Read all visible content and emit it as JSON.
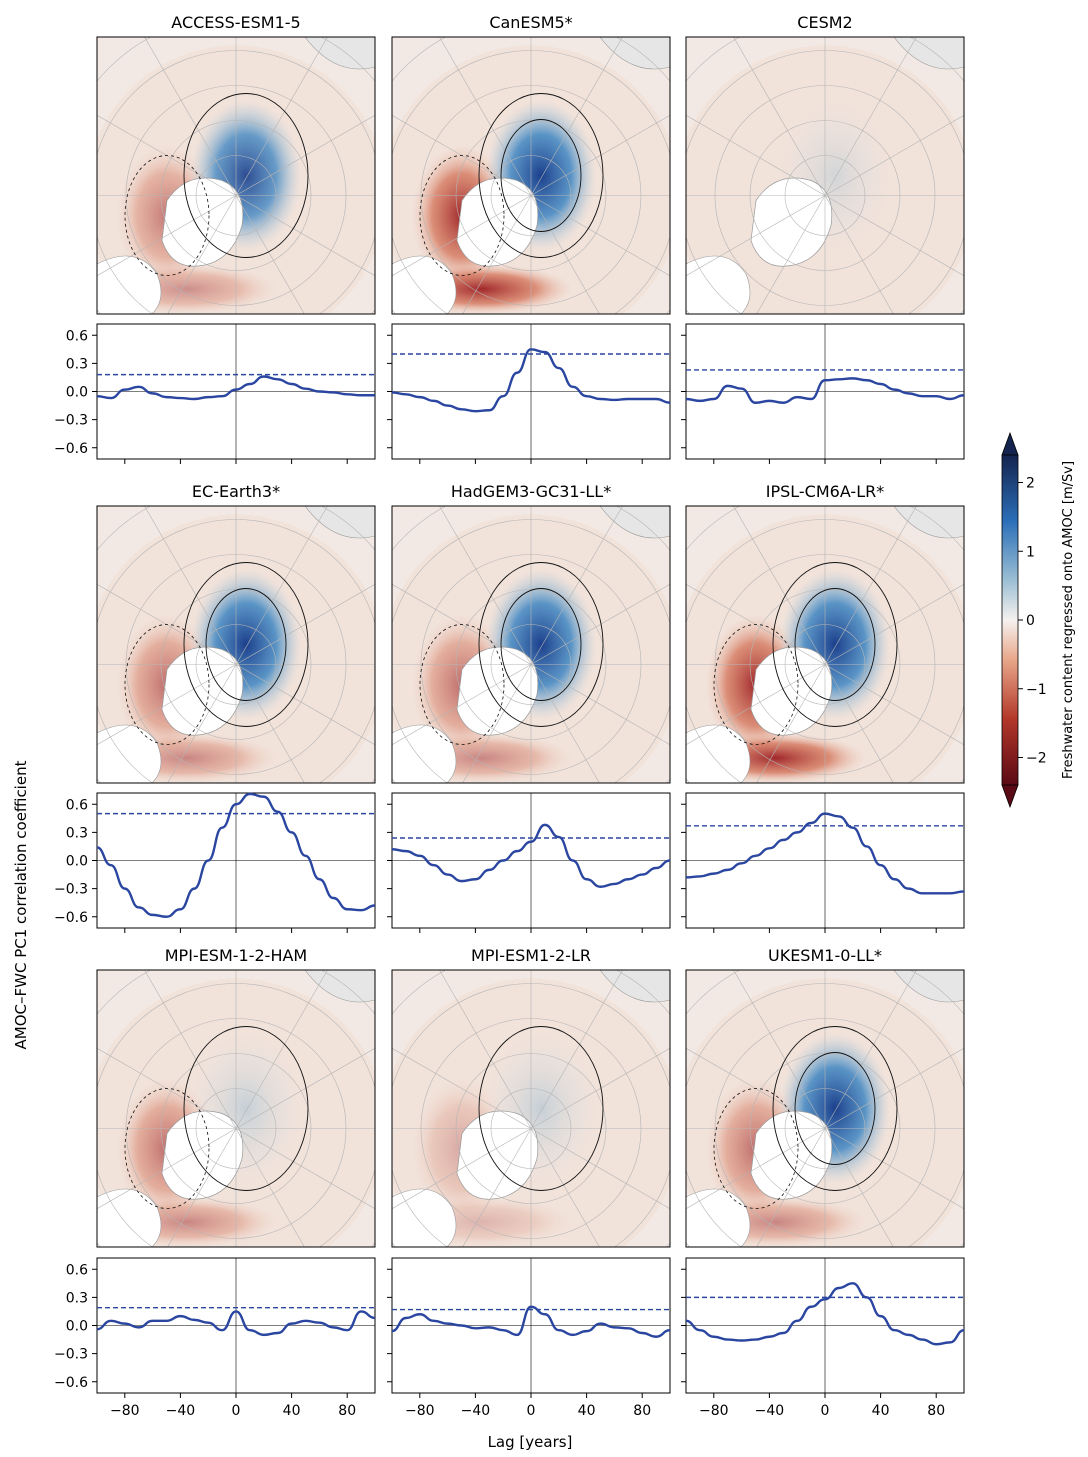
{
  "figure": {
    "ylabel": "AMOC–FWC PC1 correlation coefficient",
    "xlabel": "Lag [years]",
    "colorbar": {
      "label": "Freshwater content regressed onto AMOC [m/Sv]",
      "ticks": [
        "2",
        "1",
        "0",
        "−1",
        "−2"
      ],
      "tick_values": [
        2,
        1,
        0,
        -1,
        -2
      ],
      "range": [
        -2.4,
        2.4
      ],
      "colors": {
        "neg": "#5a0a14",
        "mid": "#f6f1ef",
        "pos": "#15244f"
      }
    }
  },
  "panels": [
    {
      "name": "ACCESS-ESM1-5",
      "hotspots": [
        {
          "pos": 1
        },
        {
          "neg": 0.9
        }
      ]
    },
    {
      "name": "CanESM5*",
      "hotspots": [
        {
          "pos": 2.3
        },
        {
          "neg": 2
        }
      ]
    },
    {
      "name": "CESM2",
      "hotspots": [
        {
          "pos": 0.2
        }
      ]
    },
    {
      "name": "EC-Earth3*",
      "hotspots": [
        {
          "pos": 1.5
        },
        {
          "neg": 1
        }
      ]
    },
    {
      "name": "HadGEM3-GC31-LL*",
      "hotspots": [
        {
          "pos": 1.5
        },
        {
          "neg": 1
        }
      ]
    },
    {
      "name": "IPSL-CM6A-LR*",
      "hotspots": [
        {
          "pos": 2
        },
        {
          "neg": 2
        }
      ]
    },
    {
      "name": "MPI-ESM-1-2-HAM",
      "hotspots": [
        {
          "pos": 0.4
        },
        {
          "neg": 1
        }
      ]
    },
    {
      "name": "MPI-ESM1-2-LR",
      "hotspots": [
        {
          "pos": 0.4
        },
        {
          "neg": 0.5
        }
      ]
    },
    {
      "name": "UKESM1-0-LL*",
      "hotspots": [
        {
          "pos": 2
        },
        {
          "neg": 1
        }
      ]
    }
  ],
  "chart_data": {
    "type": "line",
    "x_range": [
      -100,
      100
    ],
    "ylim": [
      -0.72,
      0.72
    ],
    "x_ticks": [
      "−80",
      "−40",
      "0",
      "40",
      "80"
    ],
    "x_tick_values": [
      -80,
      -40,
      0,
      40,
      80
    ],
    "y_ticks": [
      "0.6",
      "0.3",
      "0.0",
      "−0.3",
      "−0.6"
    ],
    "y_tick_values": [
      0.6,
      0.3,
      0.0,
      -0.3,
      -0.6
    ],
    "line_color": "#2a46a0",
    "series": [
      {
        "name": "ACCESS-ESM1-5",
        "threshold": 0.18,
        "x": [
          -100,
          -90,
          -80,
          -70,
          -60,
          -50,
          -40,
          -30,
          -20,
          -10,
          0,
          10,
          20,
          30,
          40,
          50,
          60,
          70,
          80,
          90,
          100
        ],
        "y": [
          -0.05,
          -0.07,
          0.02,
          0.05,
          -0.02,
          -0.06,
          -0.07,
          -0.08,
          -0.06,
          -0.05,
          0.02,
          0.08,
          0.16,
          0.13,
          0.08,
          0.03,
          0.0,
          -0.01,
          -0.03,
          -0.04,
          -0.04
        ]
      },
      {
        "name": "CanESM5*",
        "threshold": 0.4,
        "x": [
          -100,
          -90,
          -80,
          -70,
          -60,
          -50,
          -40,
          -30,
          -20,
          -10,
          0,
          10,
          20,
          30,
          40,
          50,
          60,
          70,
          80,
          90,
          100
        ],
        "y": [
          -0.01,
          -0.03,
          -0.06,
          -0.1,
          -0.15,
          -0.19,
          -0.21,
          -0.2,
          -0.05,
          0.2,
          0.45,
          0.42,
          0.25,
          0.05,
          -0.05,
          -0.08,
          -0.09,
          -0.08,
          -0.08,
          -0.08,
          -0.12
        ]
      },
      {
        "name": "CESM2",
        "threshold": 0.23,
        "x": [
          -100,
          -90,
          -80,
          -70,
          -60,
          -50,
          -40,
          -30,
          -20,
          -10,
          0,
          10,
          20,
          30,
          40,
          50,
          60,
          70,
          80,
          90,
          100
        ],
        "y": [
          -0.08,
          -0.1,
          -0.08,
          0.06,
          0.03,
          -0.12,
          -0.1,
          -0.12,
          -0.06,
          -0.08,
          0.12,
          0.13,
          0.14,
          0.12,
          0.08,
          0.02,
          -0.02,
          -0.05,
          -0.05,
          -0.08,
          -0.04
        ]
      },
      {
        "name": "EC-Earth3*",
        "threshold": 0.5,
        "x": [
          -100,
          -90,
          -80,
          -70,
          -60,
          -50,
          -40,
          -30,
          -20,
          -10,
          0,
          10,
          20,
          30,
          40,
          50,
          60,
          70,
          80,
          90,
          100
        ],
        "y": [
          0.14,
          -0.05,
          -0.3,
          -0.5,
          -0.58,
          -0.6,
          -0.52,
          -0.3,
          0.0,
          0.35,
          0.6,
          0.71,
          0.68,
          0.52,
          0.3,
          0.05,
          -0.2,
          -0.4,
          -0.52,
          -0.53,
          -0.48
        ]
      },
      {
        "name": "HadGEM3-GC31-LL*",
        "threshold": 0.24,
        "x": [
          -100,
          -90,
          -80,
          -70,
          -60,
          -50,
          -40,
          -30,
          -20,
          -10,
          0,
          10,
          20,
          30,
          40,
          50,
          60,
          70,
          80,
          90,
          100
        ],
        "y": [
          0.12,
          0.1,
          0.05,
          -0.05,
          -0.15,
          -0.22,
          -0.2,
          -0.1,
          0.0,
          0.1,
          0.2,
          0.38,
          0.25,
          0.0,
          -0.2,
          -0.28,
          -0.25,
          -0.2,
          -0.15,
          -0.08,
          0.0
        ]
      },
      {
        "name": "IPSL-CM6A-LR*",
        "threshold": 0.37,
        "x": [
          -100,
          -90,
          -80,
          -70,
          -60,
          -50,
          -40,
          -30,
          -20,
          -10,
          0,
          10,
          20,
          30,
          40,
          50,
          60,
          70,
          80,
          90,
          100
        ],
        "y": [
          -0.18,
          -0.17,
          -0.14,
          -0.1,
          -0.03,
          0.05,
          0.13,
          0.22,
          0.3,
          0.4,
          0.5,
          0.47,
          0.35,
          0.15,
          -0.05,
          -0.2,
          -0.3,
          -0.35,
          -0.35,
          -0.35,
          -0.33
        ]
      },
      {
        "name": "MPI-ESM-1-2-HAM",
        "threshold": 0.19,
        "x": [
          -100,
          -90,
          -80,
          -70,
          -60,
          -50,
          -40,
          -30,
          -20,
          -10,
          0,
          10,
          20,
          30,
          40,
          50,
          60,
          70,
          80,
          90,
          100
        ],
        "y": [
          -0.04,
          0.05,
          0.02,
          -0.02,
          0.05,
          0.05,
          0.1,
          0.06,
          0.03,
          -0.05,
          0.15,
          -0.05,
          -0.1,
          -0.08,
          0.02,
          0.05,
          0.03,
          -0.02,
          -0.05,
          0.15,
          0.08
        ]
      },
      {
        "name": "MPI-ESM1-2-LR",
        "threshold": 0.17,
        "x": [
          -100,
          -90,
          -80,
          -70,
          -60,
          -50,
          -40,
          -30,
          -20,
          -10,
          0,
          10,
          20,
          30,
          40,
          50,
          60,
          70,
          80,
          90,
          100
        ],
        "y": [
          -0.06,
          0.08,
          0.12,
          0.05,
          0.02,
          0.0,
          -0.03,
          -0.02,
          -0.05,
          -0.1,
          0.2,
          0.12,
          -0.05,
          -0.1,
          -0.06,
          0.02,
          -0.02,
          -0.03,
          -0.08,
          -0.12,
          -0.05
        ]
      },
      {
        "name": "UKESM1-0-LL*",
        "threshold": 0.3,
        "x": [
          -100,
          -90,
          -80,
          -70,
          -60,
          -50,
          -40,
          -30,
          -20,
          -10,
          0,
          10,
          20,
          30,
          40,
          50,
          60,
          70,
          80,
          90,
          100
        ],
        "y": [
          0.05,
          -0.05,
          -0.12,
          -0.15,
          -0.16,
          -0.15,
          -0.12,
          -0.08,
          0.05,
          0.2,
          0.28,
          0.4,
          0.45,
          0.3,
          0.1,
          -0.05,
          -0.1,
          -0.15,
          -0.2,
          -0.18,
          -0.05
        ]
      }
    ]
  }
}
